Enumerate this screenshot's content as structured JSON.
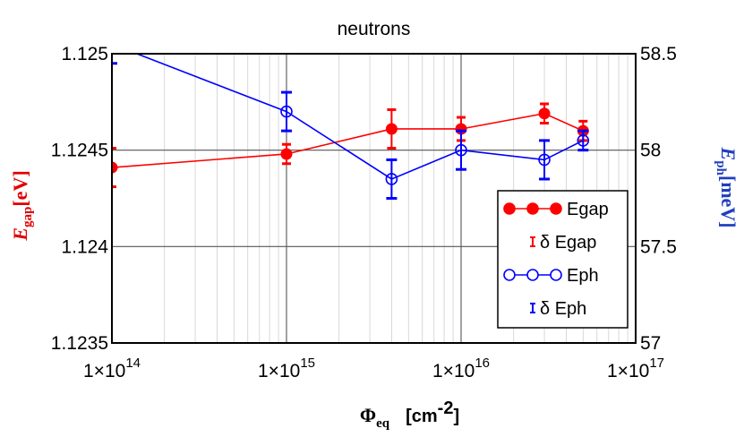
{
  "chart_data": {
    "type": "line",
    "title": "neutrons",
    "x": [
      100000000000000.0,
      1000000000000000.0,
      4000000000000000.0,
      1e+16,
      3e+16,
      5e+16
    ],
    "x_scale": "log",
    "xlim": [
      100000000000000.0,
      1e+17
    ],
    "x_tick_labels": [
      {
        "base": "1×10",
        "exp": "14"
      },
      {
        "base": "1×10",
        "exp": "15"
      },
      {
        "base": "1×10",
        "exp": "16"
      },
      {
        "base": "1×10",
        "exp": "17"
      }
    ],
    "xlabel": {
      "symbol": "Φ",
      "sub": "eq",
      "unit_pre": "[cm",
      "unit_exp": "-2",
      "unit_post": "]"
    },
    "y_left": {
      "label": {
        "symbol": "E",
        "sub": "gap",
        "unit": "[eV]"
      },
      "lim": [
        1.1235,
        1.125
      ],
      "ticks": [
        "1.1235",
        "1.124",
        "1.1245",
        "1.125"
      ],
      "color": "#e00000"
    },
    "y_right": {
      "label": {
        "symbol": "E",
        "sub": "ph",
        "unit": "[meV]"
      },
      "lim": [
        57,
        58.5
      ],
      "ticks": [
        "57",
        "57.5",
        "58",
        "58.5"
      ],
      "color": "#1f3fbf"
    },
    "series": [
      {
        "name": "Egap",
        "axis": "left",
        "color": "#ff0000",
        "marker": "filled-circle",
        "values": [
          1.12441,
          1.12448,
          1.12461,
          1.12461,
          1.12469,
          1.1246
        ],
        "error_name": "δ Egap",
        "errors": [
          0.0001,
          5e-05,
          0.0001,
          6e-05,
          5e-05,
          5e-05
        ]
      },
      {
        "name": "Eph",
        "axis": "right",
        "color": "#0000ff",
        "marker": "open-circle",
        "values": [
          58.55,
          58.2,
          57.85,
          58.0,
          57.95,
          58.05
        ],
        "error_name": "δ Eph",
        "errors": [
          0.1,
          0.1,
          0.1,
          0.1,
          0.1,
          0.05
        ]
      }
    ],
    "grid": true,
    "legend_position": "bottom-right"
  }
}
